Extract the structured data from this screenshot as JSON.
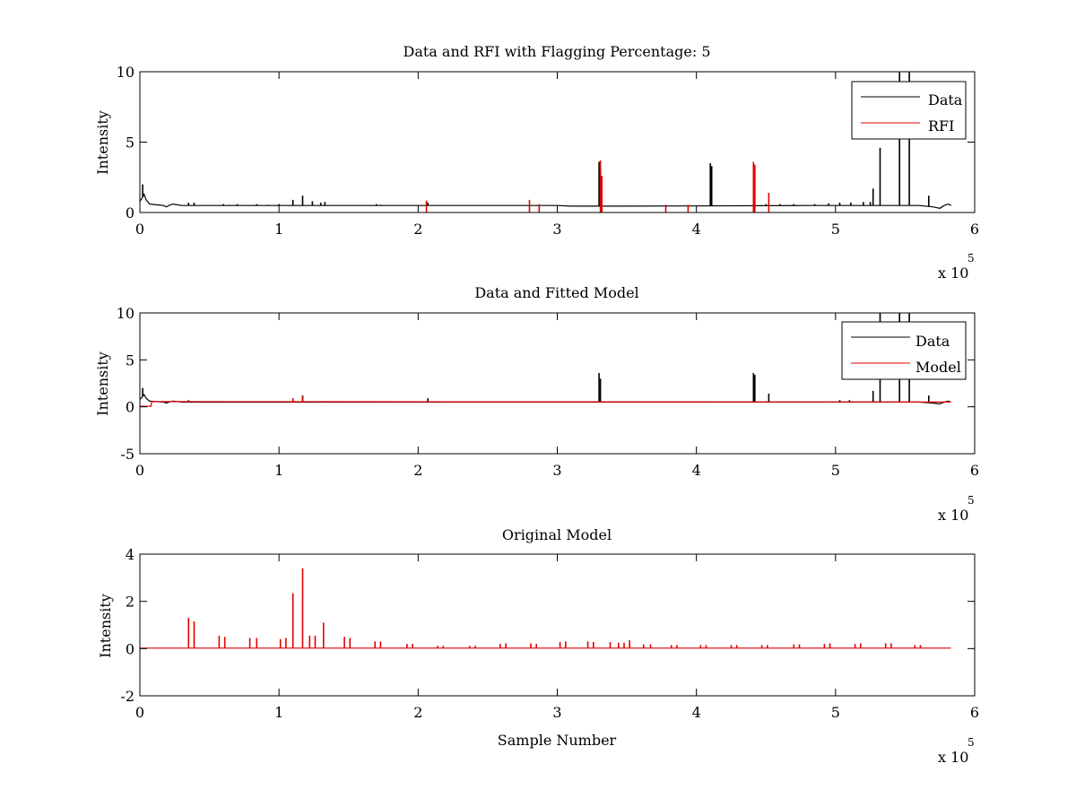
{
  "figure": {
    "background": "#ffffff",
    "axis_color": "#000000"
  },
  "chart_data": [
    {
      "type": "line",
      "title": "Data and RFI with Flagging Percentage: 5",
      "xlabel": "",
      "ylabel": "Intensity",
      "xlim": [
        0,
        600000
      ],
      "ylim": [
        0,
        10
      ],
      "x_ticks": [
        0,
        1,
        2,
        3,
        4,
        5,
        6
      ],
      "y_ticks": [
        0,
        5,
        10
      ],
      "x_exponent_label": "x 10",
      "x_exponent_power": "5",
      "grid": false,
      "legend": {
        "placement": "top-right",
        "entries": [
          "Data",
          "RFI"
        ]
      },
      "series": [
        {
          "name": "Data",
          "color": "#000000",
          "baseline": [
            [
              0,
              0.8
            ],
            [
              1500,
              1.0
            ],
            [
              3000,
              1.3
            ],
            [
              4500,
              0.9
            ],
            [
              7000,
              0.6
            ],
            [
              12000,
              0.55
            ],
            [
              17000,
              0.5
            ],
            [
              19000,
              0.4
            ],
            [
              22000,
              0.55
            ],
            [
              24000,
              0.6
            ],
            [
              30000,
              0.5
            ],
            [
              300000,
              0.5
            ],
            [
              310000,
              0.45
            ],
            [
              350000,
              0.45
            ],
            [
              480000,
              0.5
            ],
            [
              560000,
              0.5
            ],
            [
              570000,
              0.4
            ],
            [
              575000,
              0.3
            ],
            [
              578000,
              0.5
            ],
            [
              581000,
              0.6
            ],
            [
              583000,
              0.5
            ]
          ],
          "spikes": [
            [
              2000,
              2.0
            ],
            [
              35000,
              0.7
            ],
            [
              39000,
              0.7
            ],
            [
              60000,
              0.6
            ],
            [
              64000,
              0.55
            ],
            [
              70000,
              0.6
            ],
            [
              84000,
              0.6
            ],
            [
              92000,
              0.55
            ],
            [
              100000,
              0.6
            ],
            [
              110000,
              0.9
            ],
            [
              117000,
              1.2
            ],
            [
              124000,
              0.8
            ],
            [
              130000,
              0.7
            ],
            [
              133000,
              0.75
            ],
            [
              170000,
              0.6
            ],
            [
              173000,
              0.55
            ],
            [
              207000,
              0.7
            ],
            [
              330000,
              3.6
            ],
            [
              331000,
              3.1
            ],
            [
              410000,
              3.5
            ],
            [
              411000,
              3.3
            ],
            [
              450000,
              0.6
            ],
            [
              460000,
              0.6
            ],
            [
              470000,
              0.6
            ],
            [
              485000,
              0.6
            ],
            [
              495000,
              0.65
            ],
            [
              503000,
              0.7
            ],
            [
              511000,
              0.7
            ],
            [
              520000,
              0.75
            ],
            [
              525000,
              0.75
            ],
            [
              527000,
              1.7
            ],
            [
              532000,
              4.6
            ],
            [
              546000,
              10
            ],
            [
              553000,
              10
            ],
            [
              567000,
              1.2
            ]
          ]
        },
        {
          "name": "RFI",
          "color": "#e00000",
          "spikes": [
            [
              206000,
              0.85
            ],
            [
              280000,
              0.9
            ],
            [
              287000,
              0.6
            ],
            [
              331000,
              3.7
            ],
            [
              332000,
              2.6
            ],
            [
              441000,
              3.6
            ],
            [
              442000,
              3.4
            ],
            [
              452000,
              1.4
            ],
            [
              378000,
              0.55
            ],
            [
              394000,
              0.55
            ]
          ]
        }
      ]
    },
    {
      "type": "line",
      "title": "Data and Fitted Model",
      "xlabel": "",
      "ylabel": "Intensity",
      "xlim": [
        0,
        600000
      ],
      "ylim": [
        -5,
        10
      ],
      "x_ticks": [
        0,
        1,
        2,
        3,
        4,
        5,
        6
      ],
      "y_ticks": [
        -5,
        0,
        5,
        10
      ],
      "x_exponent_label": "x 10",
      "x_exponent_power": "5",
      "grid": false,
      "legend": {
        "placement": "top-right",
        "entries": [
          "Data",
          "Model"
        ]
      },
      "series": [
        {
          "name": "Data",
          "color": "#000000",
          "baseline": [
            [
              0,
              0.8
            ],
            [
              1500,
              1.0
            ],
            [
              3000,
              1.3
            ],
            [
              4500,
              0.9
            ],
            [
              7000,
              0.6
            ],
            [
              12000,
              0.55
            ],
            [
              17000,
              0.5
            ],
            [
              19000,
              0.4
            ],
            [
              22000,
              0.55
            ],
            [
              24000,
              0.6
            ],
            [
              30000,
              0.5
            ],
            [
              300000,
              0.5
            ],
            [
              560000,
              0.5
            ],
            [
              570000,
              0.4
            ],
            [
              575000,
              0.3
            ],
            [
              578000,
              0.5
            ],
            [
              581000,
              0.6
            ],
            [
              583000,
              0.5
            ]
          ],
          "spikes": [
            [
              2000,
              2.0
            ],
            [
              35000,
              0.7
            ],
            [
              110000,
              0.9
            ],
            [
              117000,
              1.2
            ],
            [
              207000,
              0.9
            ],
            [
              330000,
              3.6
            ],
            [
              331000,
              3.0
            ],
            [
              441000,
              3.6
            ],
            [
              442000,
              3.4
            ],
            [
              452000,
              1.4
            ],
            [
              503000,
              0.7
            ],
            [
              510000,
              0.7
            ],
            [
              527000,
              1.7
            ],
            [
              532000,
              10
            ],
            [
              546000,
              10
            ],
            [
              553000,
              10
            ],
            [
              567000,
              1.2
            ]
          ]
        },
        {
          "name": "Model",
          "color": "#e00000",
          "baseline": [
            [
              0,
              0.05
            ],
            [
              8000,
              0.05
            ],
            [
              8500,
              0.55
            ],
            [
              583000,
              0.5
            ]
          ],
          "spikes": [
            [
              35000,
              0.65
            ],
            [
              39000,
              0.6
            ],
            [
              60000,
              0.6
            ],
            [
              64000,
              0.6
            ],
            [
              100000,
              0.6
            ],
            [
              110000,
              0.9
            ],
            [
              117000,
              1.1
            ],
            [
              130000,
              0.6
            ],
            [
              170000,
              0.6
            ]
          ]
        }
      ]
    },
    {
      "type": "line",
      "title": "Original Model",
      "xlabel": "Sample Number",
      "ylabel": "Intensity",
      "xlim": [
        0,
        600000
      ],
      "ylim": [
        -2,
        4
      ],
      "x_ticks": [
        0,
        1,
        2,
        3,
        4,
        5,
        6
      ],
      "y_ticks": [
        -2,
        0,
        2,
        4
      ],
      "x_exponent_label": "x 10",
      "x_exponent_power": "5",
      "grid": false,
      "series": [
        {
          "color": "#e00000",
          "baseline": [
            [
              0,
              0.02
            ],
            [
              583000,
              0.02
            ]
          ],
          "spikes": [
            [
              35000,
              1.3
            ],
            [
              39000,
              1.15
            ],
            [
              57000,
              0.55
            ],
            [
              61000,
              0.5
            ],
            [
              79000,
              0.45
            ],
            [
              84000,
              0.45
            ],
            [
              101000,
              0.4
            ],
            [
              105000,
              0.45
            ],
            [
              110000,
              2.35
            ],
            [
              117000,
              3.4
            ],
            [
              122000,
              0.55
            ],
            [
              126000,
              0.55
            ],
            [
              132000,
              1.1
            ],
            [
              147000,
              0.5
            ],
            [
              151000,
              0.45
            ],
            [
              169000,
              0.3
            ],
            [
              173000,
              0.3
            ],
            [
              192000,
              0.2
            ],
            [
              196000,
              0.2
            ],
            [
              214000,
              0.12
            ],
            [
              218000,
              0.12
            ],
            [
              237000,
              0.12
            ],
            [
              241000,
              0.12
            ],
            [
              259000,
              0.2
            ],
            [
              263000,
              0.22
            ],
            [
              281000,
              0.22
            ],
            [
              285000,
              0.2
            ],
            [
              302000,
              0.28
            ],
            [
              306000,
              0.3
            ],
            [
              322000,
              0.3
            ],
            [
              326000,
              0.28
            ],
            [
              338000,
              0.28
            ],
            [
              344000,
              0.25
            ],
            [
              348000,
              0.25
            ],
            [
              352000,
              0.35
            ],
            [
              362000,
              0.18
            ],
            [
              367000,
              0.18
            ],
            [
              382000,
              0.15
            ],
            [
              386000,
              0.15
            ],
            [
              403000,
              0.15
            ],
            [
              407000,
              0.15
            ],
            [
              425000,
              0.15
            ],
            [
              429000,
              0.15
            ],
            [
              447000,
              0.15
            ],
            [
              451000,
              0.15
            ],
            [
              470000,
              0.18
            ],
            [
              474000,
              0.18
            ],
            [
              492000,
              0.2
            ],
            [
              496000,
              0.22
            ],
            [
              514000,
              0.2
            ],
            [
              518000,
              0.22
            ],
            [
              536000,
              0.22
            ],
            [
              540000,
              0.22
            ],
            [
              557000,
              0.15
            ],
            [
              561000,
              0.15
            ]
          ]
        }
      ]
    }
  ]
}
